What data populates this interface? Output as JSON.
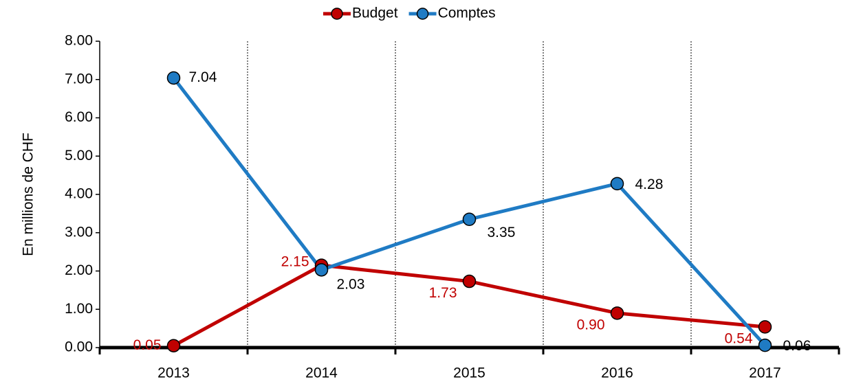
{
  "chart_data": {
    "type": "line",
    "y_label": "En millions de CHF",
    "categories": [
      "2013",
      "2014",
      "2015",
      "2016",
      "2017"
    ],
    "series": [
      {
        "name": "Budget",
        "color": "#c00000",
        "values": [
          0.05,
          2.15,
          1.73,
          0.9,
          0.54
        ],
        "value_labels": [
          "0.05",
          "2.15",
          "1.73",
          "0.90",
          "0.54"
        ]
      },
      {
        "name": "Comptes",
        "color": "#1f7bc4",
        "values": [
          7.04,
          2.03,
          3.35,
          4.28,
          0.06
        ],
        "value_labels": [
          "7.04",
          "2.03",
          "3.35",
          "4.28",
          "0.06"
        ]
      }
    ],
    "ylim": [
      0,
      8
    ],
    "yticks": [
      {
        "value": 0,
        "label": "0.00"
      },
      {
        "value": 1,
        "label": "1.00"
      },
      {
        "value": 2,
        "label": "2.00"
      },
      {
        "value": 3,
        "label": "3.00"
      },
      {
        "value": 4,
        "label": "4.00"
      },
      {
        "value": 5,
        "label": "5.00"
      },
      {
        "value": 6,
        "label": "6.00"
      },
      {
        "value": 7,
        "label": "7.00"
      },
      {
        "value": 8,
        "label": "8.00"
      }
    ],
    "legend": "top"
  }
}
